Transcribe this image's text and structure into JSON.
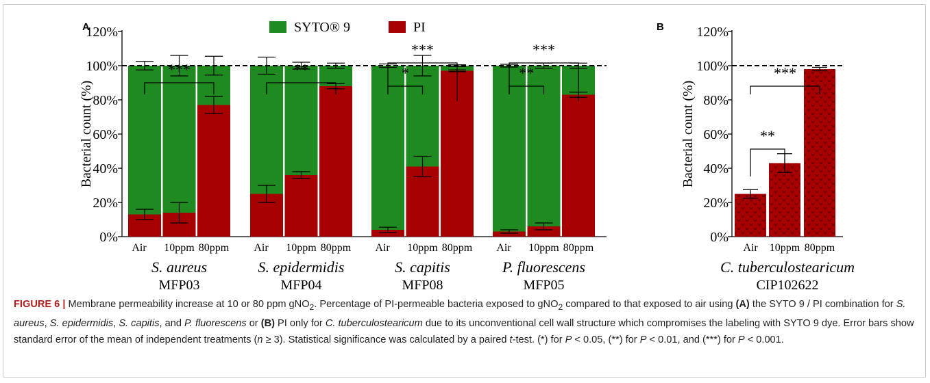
{
  "chart_data": [
    {
      "type": "bar",
      "panel_label": "A",
      "stacked": true,
      "legend": [
        {
          "name": "SYTO® 9",
          "color": "#1f8a1f"
        },
        {
          "name": "PI",
          "color": "#a60000"
        }
      ],
      "ylabel": "Bacterial count (%)",
      "ylim": [
        0,
        120
      ],
      "yticks": [
        "0%",
        "20%",
        "40%",
        "60%",
        "80%",
        "100%",
        "120%"
      ],
      "reference_line": 100,
      "groups": [
        {
          "species": "S. aureus",
          "strain": "MFP03",
          "categories": [
            "Air",
            "10ppm",
            "80ppm"
          ],
          "pi": [
            13,
            14,
            77
          ],
          "pi_err": [
            3,
            6,
            5
          ],
          "total_err": [
            2.5,
            6,
            5.5
          ],
          "sig": [
            {
              "from": 0,
              "to": 2,
              "label": "***"
            }
          ]
        },
        {
          "species": "S. epidermidis",
          "strain": "MFP04",
          "categories": [
            "Air",
            "10ppm",
            "80ppm"
          ],
          "pi": [
            25,
            36,
            88
          ],
          "pi_err": [
            5,
            2,
            1.5
          ],
          "total_err": [
            5,
            2,
            1.5
          ],
          "sig": [
            {
              "from": 0,
              "to": 2,
              "label": "**"
            }
          ]
        },
        {
          "species": "S. capitis",
          "strain": "MFP08",
          "categories": [
            "Air",
            "10ppm",
            "80ppm"
          ],
          "pi": [
            4,
            41,
            97
          ],
          "pi_err": [
            1.5,
            6,
            0.5
          ],
          "total_err": [
            1,
            6,
            0.5
          ],
          "sig": [
            {
              "from": 0,
              "to": 1,
              "label": "*"
            },
            {
              "from": 0,
              "to": 2,
              "label": "***"
            }
          ]
        },
        {
          "species": "P. fluorescens",
          "strain": "MFP05",
          "categories": [
            "Air",
            "10ppm",
            "80ppm"
          ],
          "pi": [
            3,
            6,
            83
          ],
          "pi_err": [
            1,
            2,
            1.5
          ],
          "total_err": [
            0.8,
            1.5,
            1.5
          ],
          "sig": [
            {
              "from": 0,
              "to": 1,
              "label": "**"
            },
            {
              "from": 0,
              "to": 2,
              "label": "***"
            }
          ]
        }
      ]
    },
    {
      "type": "bar",
      "panel_label": "B",
      "ylabel": "Bacterial count (%)",
      "ylim": [
        0,
        120
      ],
      "yticks": [
        "0%",
        "20%",
        "40%",
        "60%",
        "80%",
        "100%",
        "120%"
      ],
      "reference_line": 100,
      "species": "C. tuberculostearicum",
      "strain": "CIP102622",
      "categories": [
        "Air",
        "10ppm",
        "80ppm"
      ],
      "values": [
        25,
        43,
        98
      ],
      "errors": [
        2.5,
        5.5,
        1
      ],
      "color": "#a60000",
      "sig": [
        {
          "from": 0,
          "to": 1,
          "label": "**"
        },
        {
          "from": 0,
          "to": 2,
          "label": "***"
        }
      ]
    }
  ],
  "caption": {
    "fig_label": "FIGURE 6 |",
    "c1": " Membrane permeability increase at 10 or 80 ppm gNO",
    "c2": ". Percentage of PI-permeable bacteria exposed to gNO",
    "c3": " compared to that exposed to air using ",
    "a_label": "(A)",
    "c4": " the SYTO 9 / PI combination for ",
    "sp1": "S. aureus",
    "c5": ", ",
    "sp2": "S. epidermidis",
    "c6": ", ",
    "sp3": "S. capitis",
    "c7": ", and ",
    "sp4": "P. fluorescens",
    "c8": " or ",
    "b_label": "(B)",
    "c9": " PI only for ",
    "sp5": "C. tuberculostearicum",
    "c10": " due to its unconventional cell wall structure which compromises the labeling with SYTO 9 dye. Error bars show standard error of the mean of independent treatments (",
    "n_var": "n",
    "c11": " ≥ 3). Statistical significance was calculated by a paired ",
    "t_var": "t",
    "c12": "-test. (*) for ",
    "p1": "P",
    "c13": " < 0.05, (**) for ",
    "p2": "P",
    "c14": " < 0.01, and (***) for ",
    "p3": "P",
    "c15": " < 0.001.",
    "sub": "2"
  }
}
